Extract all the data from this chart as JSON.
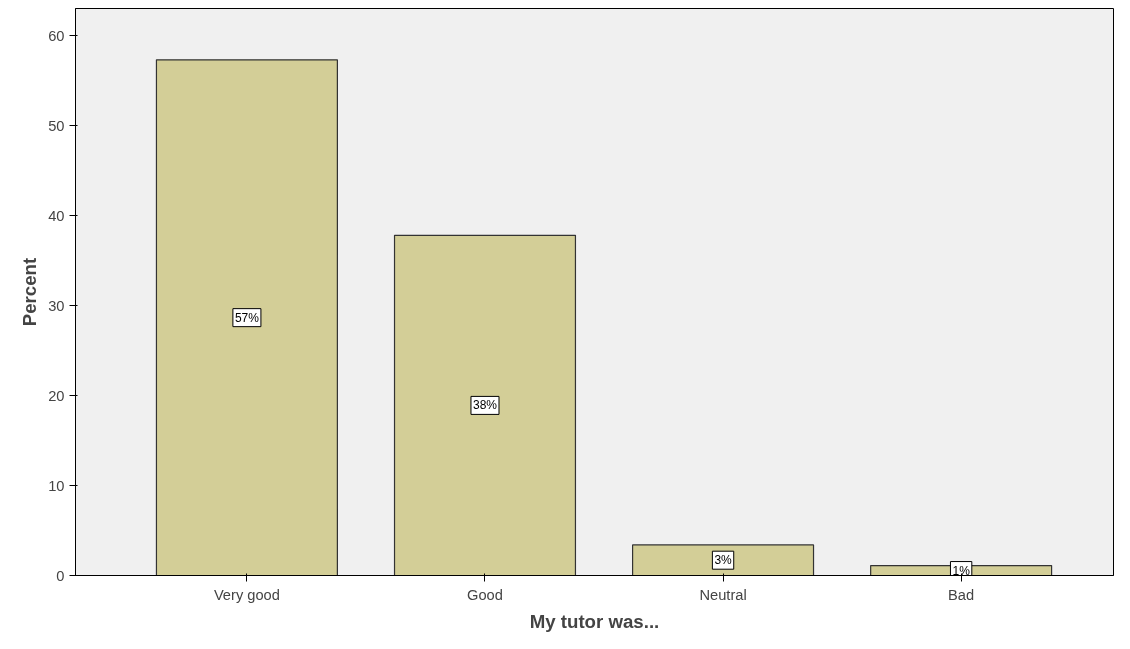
{
  "chart_data": {
    "type": "bar",
    "xlabel": "My tutor was...",
    "ylabel": "Percent",
    "categories": [
      "Very good",
      "Good",
      "Neutral",
      "Bad"
    ],
    "values": [
      57.3,
      37.8,
      3.4,
      1.1
    ],
    "value_labels": [
      "57%",
      "38%",
      "3%",
      "1%"
    ],
    "color": "#d3ce97",
    "ylim": [
      0,
      63
    ],
    "yticks": [
      0,
      10,
      20,
      30,
      40,
      50,
      60
    ],
    "grid": false
  }
}
